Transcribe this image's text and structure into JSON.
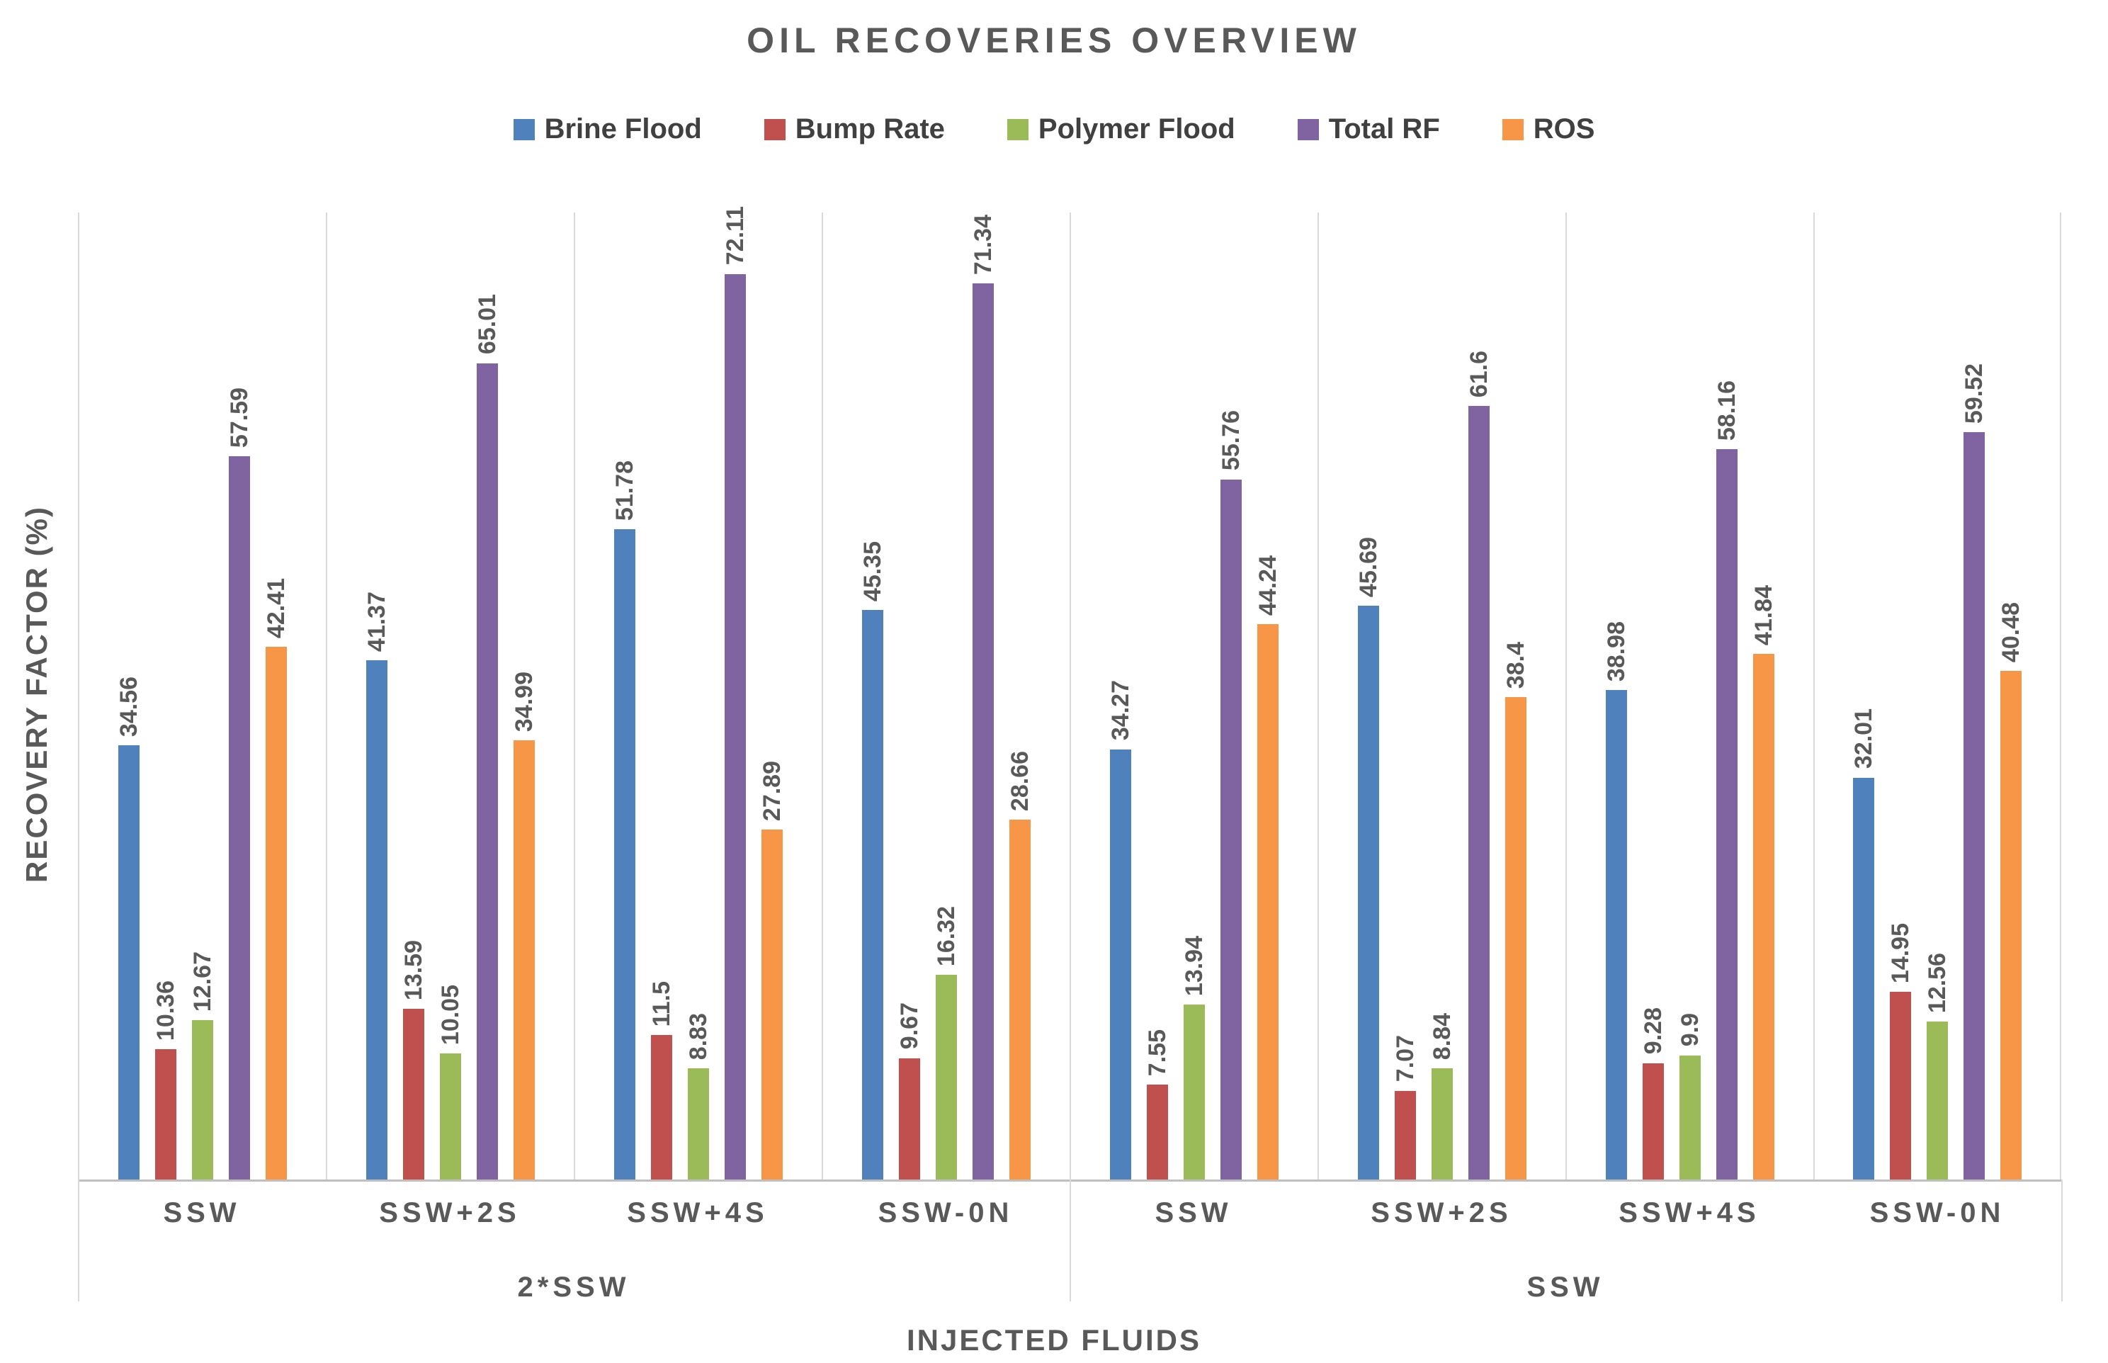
{
  "chart_data": {
    "type": "bar",
    "title": "OIL RECOVERIES OVERVIEW",
    "xlabel": "INJECTED FLUIDS",
    "ylabel": "RECOVERY FACTOR (%)",
    "ylim": [
      0,
      77
    ],
    "y_ticks_visible": false,
    "grid": "vertical-category-separators",
    "legend_position": "top",
    "bar_value_labels": "rotated-90-above-bar",
    "categories": [
      "SSW",
      "SSW+2S",
      "SSW+4S",
      "SSW-0N",
      "SSW",
      "SSW+2S",
      "SSW+4S",
      "SSW-0N"
    ],
    "category_groups": [
      {
        "label": "2*SSW",
        "span": 4
      },
      {
        "label": "SSW",
        "span": 4
      }
    ],
    "series": [
      {
        "name": "Brine Flood",
        "color": "#4F81BD",
        "values": [
          34.56,
          41.37,
          51.78,
          45.35,
          34.27,
          45.69,
          38.98,
          32.01
        ]
      },
      {
        "name": "Bump Rate",
        "color": "#C0504D",
        "values": [
          10.36,
          13.59,
          11.5,
          9.67,
          7.55,
          7.07,
          9.28,
          14.95
        ]
      },
      {
        "name": "Polymer Flood",
        "color": "#9BBB59",
        "values": [
          12.67,
          10.05,
          8.83,
          16.32,
          13.94,
          8.84,
          9.9,
          12.56
        ]
      },
      {
        "name": "Total RF",
        "color": "#8064A2",
        "values": [
          57.59,
          65.01,
          72.11,
          71.34,
          55.76,
          61.6,
          58.16,
          59.52
        ]
      },
      {
        "name": "ROS",
        "color": "#F79646",
        "values": [
          42.41,
          34.99,
          27.89,
          28.66,
          44.24,
          38.4,
          41.84,
          40.48
        ]
      }
    ],
    "colors": {
      "text": "#595959",
      "gridline": "#D9D9D9",
      "axis_line": "#BFBFBF",
      "background": "#FFFFFF"
    }
  }
}
